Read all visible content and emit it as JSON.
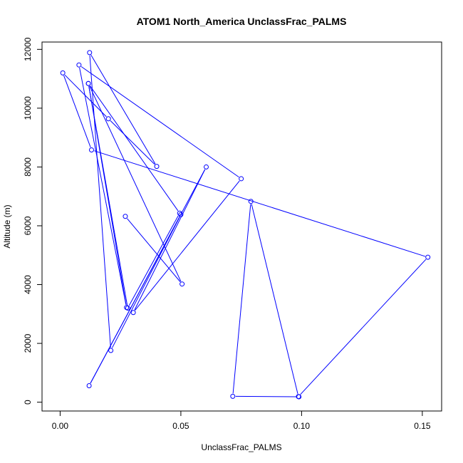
{
  "chart_data": {
    "type": "line",
    "title": "ATOM1 North_America UnclassFrac_PALMS",
    "xlabel": "UnclassFrac_PALMS",
    "ylabel": "Altitude (m)",
    "xlim": [
      -0.0075,
      0.158
    ],
    "ylim": [
      -300,
      12250
    ],
    "xticks": [
      0.0,
      0.05,
      0.1,
      0.15
    ],
    "xtick_labels": [
      "0.00",
      "0.05",
      "0.10",
      "0.15"
    ],
    "yticks": [
      0,
      2000,
      4000,
      6000,
      8000,
      10000,
      12000
    ],
    "ytick_labels": [
      "0",
      "2000",
      "4000",
      "6000",
      "8000",
      "10000",
      "12000"
    ],
    "grid": false,
    "series": [
      {
        "color": "#0000ff",
        "marker": "open-circle",
        "x": [
          0.0989,
          0.0715,
          0.079,
          0.0987,
          0.1523,
          0.013,
          0.0011,
          0.02,
          0.04,
          0.0122,
          0.021,
          0.05,
          0.012,
          0.0605,
          0.0303,
          0.075,
          0.0078,
          0.0275,
          0.0117,
          0.0495,
          0.028,
          0.0117,
          0.0505,
          0.027
        ],
        "y": [
          185,
          200,
          6830,
          190,
          4930,
          8580,
          11200,
          9640,
          8020,
          11890,
          1760,
          6380,
          560,
          8000,
          3050,
          7600,
          11470,
          3220,
          10840,
          6430,
          3200,
          10840,
          4020,
          6320
        ]
      }
    ]
  }
}
